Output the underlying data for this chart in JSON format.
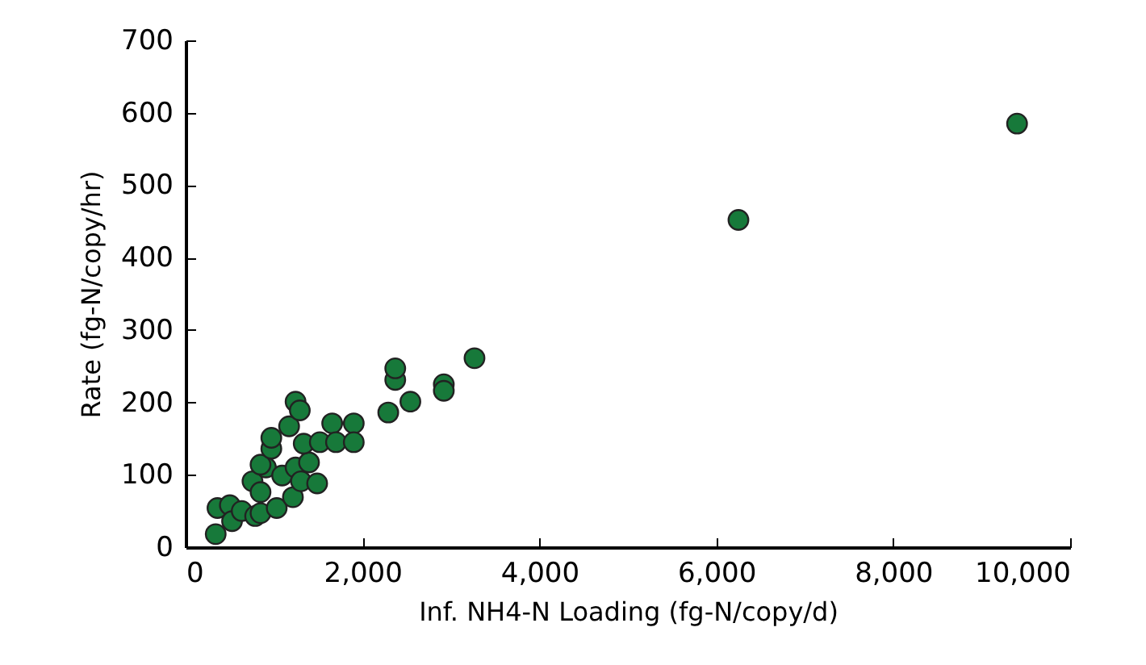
{
  "chart_data": {
    "type": "scatter",
    "xlabel": "Inf. NH4-N Loading (fg-N/copy/d)",
    "ylabel": "Rate (fg-N/copy/hr)",
    "x": [
      340,
      360,
      500,
      525,
      634,
      786,
      847,
      1030,
      756,
      847,
      908,
      847,
      969,
      969,
      1091,
      1213,
      1243,
      1304,
      1395,
      1487,
      1170,
      1243,
      1291,
      1335,
      1517,
      1657,
      1700,
      1901,
      1901,
      2291,
      2370,
      2370,
      2541,
      2919,
      2919,
      3266,
      6250,
      9400
    ],
    "series": [
      {
        "color": "#17793a",
        "values": [
          18,
          54,
          58,
          36,
          50,
          43,
          47,
          54,
          91,
          76,
          110,
          114,
          136,
          151,
          99,
          69,
          110,
          91,
          117,
          88,
          167,
          201,
          189,
          143,
          145,
          171,
          145,
          171,
          145,
          186,
          231,
          247,
          201,
          225,
          216,
          261,
          452,
          585
        ]
      }
    ],
    "xlim": [
      0,
      10000
    ],
    "xticks": [
      {
        "value": 0,
        "label": "0"
      },
      {
        "value": 2000,
        "label": "2,000"
      },
      {
        "value": 4000,
        "label": "4,000"
      },
      {
        "value": 6000,
        "label": "6,000"
      },
      {
        "value": 8000,
        "label": "8,000"
      },
      {
        "value": 10000,
        "label": "10,000"
      }
    ],
    "ylim": [
      0,
      700
    ],
    "yticks": [
      0,
      100,
      200,
      300,
      400,
      500,
      600,
      700
    ],
    "marker": "circle",
    "grid": false,
    "legend": false
  }
}
